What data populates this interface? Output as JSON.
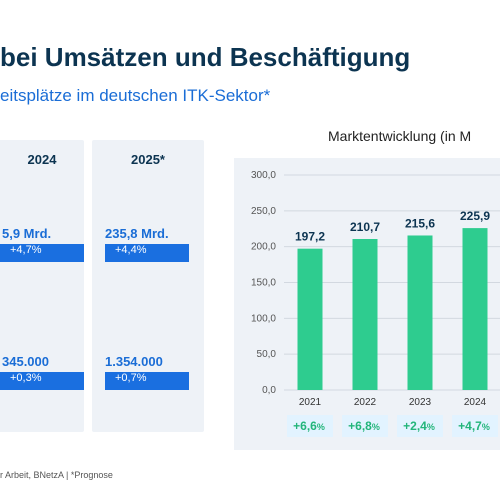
{
  "header": {
    "title": "bei Umsätzen und Beschäftigung",
    "subtitle": "eitsplätze im deutschen ITK-Sektor*"
  },
  "cards": [
    {
      "year": "2024",
      "revenue": "5,9 Mrd.",
      "revenue_change": "+4,7%",
      "jobs": "345.000",
      "jobs_change": "+0,3%"
    },
    {
      "year": "2025*",
      "revenue": "235,8 Mrd.",
      "revenue_change": "+4,4%",
      "jobs": "1.354.000",
      "jobs_change": "+0,7%"
    }
  ],
  "footnote": "r Arbeit, BNetzA | *Prognose",
  "colors": {
    "bar": "#2ecc8f",
    "accent_blue": "#1a6fe0",
    "card_bg": "#eef2f7",
    "growth_text": "#22b57a"
  },
  "chart_data": {
    "type": "bar",
    "title": "Marktentwicklung (in M",
    "categories": [
      "2021",
      "2022",
      "2023",
      "2024"
    ],
    "values": [
      197.2,
      210.7,
      215.6,
      225.9
    ],
    "value_labels": [
      "197,2",
      "210,7",
      "215,6",
      "225,9"
    ],
    "ylim": [
      0,
      300
    ],
    "yticks": [
      "0,0",
      "50,0",
      "100,0",
      "150,0",
      "200,0",
      "250,0",
      "300,0"
    ],
    "growth": [
      "+6,6",
      "+6,8",
      "+2,4",
      "+4,7"
    ],
    "growth_unit": "%",
    "grid": true,
    "xlabel": "",
    "ylabel": ""
  }
}
